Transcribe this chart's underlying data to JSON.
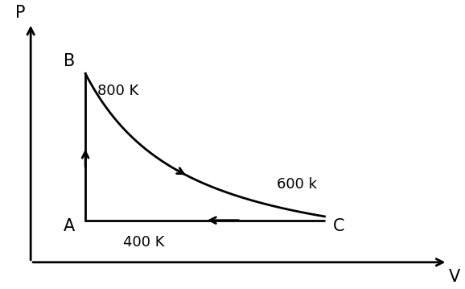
{
  "A": [
    2.0,
    1.0
  ],
  "B": [
    2.0,
    4.5
  ],
  "C": [
    5.5,
    1.0
  ],
  "T_A": "400 K",
  "T_B": "800 K",
  "T_C": "600 k",
  "label_A": "A",
  "label_B": "B",
  "label_C": "C",
  "xlabel": "V",
  "ylabel": "P",
  "bg_color": "#ffffff",
  "line_color": "#000000",
  "fontsize_labels": 15,
  "fontsize_temp": 13,
  "axis_origin_x": 1.2,
  "axis_origin_y": 0.0,
  "xlim": [
    0.8,
    7.5
  ],
  "ylim": [
    -0.3,
    6.0
  ],
  "gamma": 1.4
}
